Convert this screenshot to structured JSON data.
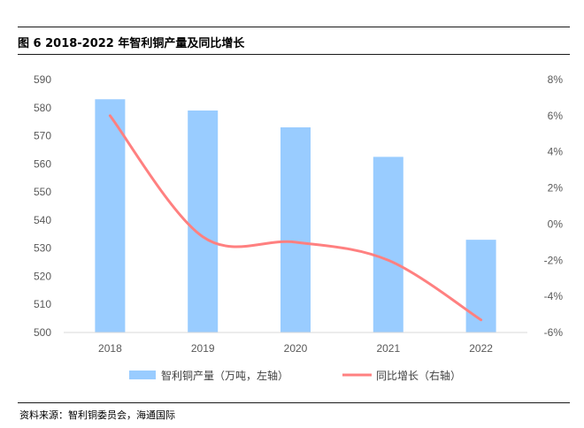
{
  "figure": {
    "title": "图 6 2018-2022 年智利铜产量及同比增长",
    "source": "资料来源：智利铜委员会，海通国际"
  },
  "legend": {
    "bar_label": "智利铜产量（万吨，左轴）",
    "line_label": "同比增长（右轴）"
  },
  "colors": {
    "bar": "#99ccff",
    "line": "#ff8080",
    "axis": "#d9d9d9",
    "text": "#595959"
  },
  "chart_data": {
    "type": "bar",
    "categories": [
      "2018",
      "2019",
      "2020",
      "2021",
      "2022"
    ],
    "series": [
      {
        "name": "智利铜产量（万吨，左轴）",
        "type": "bar",
        "axis": "left",
        "values": [
          583,
          579,
          573,
          562.5,
          533
        ]
      },
      {
        "name": "同比增长（右轴）",
        "type": "line",
        "axis": "right",
        "smooth": true,
        "values": [
          6.0,
          -0.7,
          -1.0,
          -2.0,
          -5.3
        ]
      }
    ],
    "left_axis": {
      "range": [
        500,
        590
      ],
      "step": 10,
      "ticks": [
        "500",
        "510",
        "520",
        "530",
        "540",
        "550",
        "560",
        "570",
        "580",
        "590"
      ]
    },
    "right_axis": {
      "range": [
        -6,
        8
      ],
      "step": 2,
      "ticks": [
        "-6%",
        "-4%",
        "-2%",
        "0%",
        "2%",
        "4%",
        "6%",
        "8%"
      ]
    },
    "grid": false,
    "legend_position": "bottom"
  }
}
